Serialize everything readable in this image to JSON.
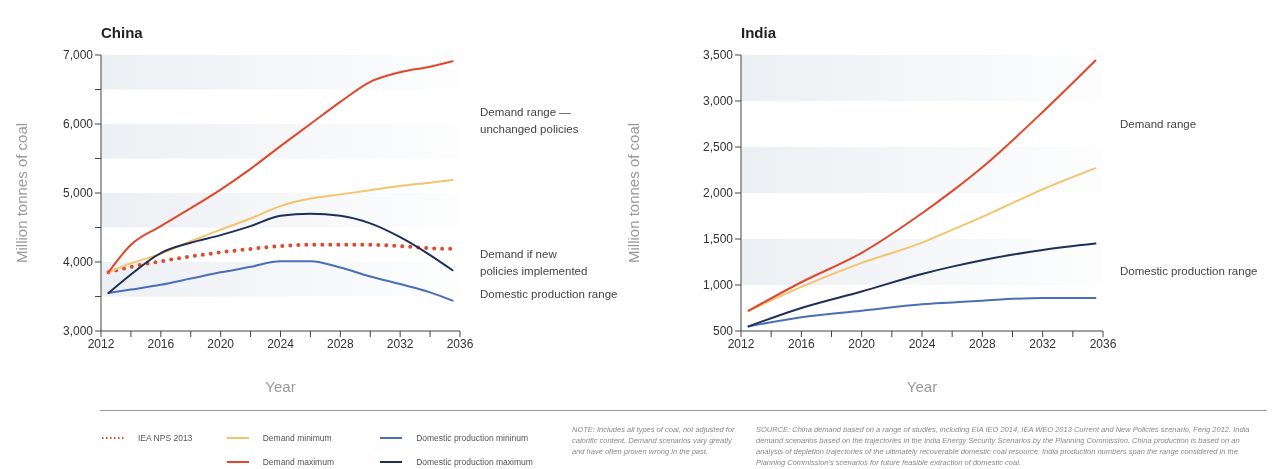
{
  "chart_data": [
    {
      "type": "line",
      "title": "China",
      "xlabel": "Year",
      "ylabel": "Million tonnes of coal",
      "x": [
        2012.5,
        2014,
        2016,
        2018,
        2020,
        2022,
        2024,
        2026,
        2028,
        2030,
        2032,
        2034,
        2035.5
      ],
      "series": [
        {
          "name": "IEA NPS 2013",
          "color": "#e0472b",
          "line_style": "dotted",
          "values": [
            3850,
            3930,
            4010,
            4080,
            4140,
            4190,
            4230,
            4250,
            4250,
            4250,
            4230,
            4200,
            4190
          ]
        },
        {
          "name": "Demand minimum",
          "color": "#f2c46d",
          "values": [
            3850,
            3980,
            4120,
            4300,
            4470,
            4630,
            4810,
            4920,
            4980,
            5040,
            5100,
            5150,
            5190
          ]
        },
        {
          "name": "Demand maximum",
          "color": "#e0472b",
          "values": [
            3850,
            4250,
            4520,
            4780,
            5050,
            5350,
            5680,
            6000,
            6320,
            6610,
            6750,
            6830,
            6910
          ]
        },
        {
          "name": "Domestic production mininum",
          "color": "#4a6fb5",
          "values": [
            3550,
            3600,
            3670,
            3760,
            3850,
            3930,
            4010,
            4010,
            3920,
            3790,
            3680,
            3560,
            3440
          ]
        },
        {
          "name": "Domestic production maximum",
          "color": "#1f2f56",
          "values": [
            3550,
            3820,
            4130,
            4280,
            4390,
            4520,
            4670,
            4700,
            4670,
            4560,
            4360,
            4100,
            3880
          ]
        }
      ],
      "xlim": [
        2012,
        2036
      ],
      "xticks": [
        2012,
        {
          "value": 2014,
          "label": null
        },
        2016,
        {
          "value": 2018,
          "label": null
        },
        2020,
        {
          "value": 2022,
          "label": null
        },
        2024,
        {
          "value": 2026,
          "label": null
        },
        2028,
        {
          "value": 2030,
          "label": null
        },
        2032,
        {
          "value": 2034,
          "label": null
        },
        2036
      ],
      "ylim": [
        3000,
        7000
      ],
      "yticks": [
        {
          "value": 3000,
          "label": "3,000"
        },
        {
          "value": 3500,
          "label": null
        },
        {
          "value": 4000,
          "label": "4,000"
        },
        {
          "value": 4500,
          "label": null
        },
        {
          "value": 5000,
          "label": "5,000"
        },
        {
          "value": 5500,
          "label": null
        },
        {
          "value": 6000,
          "label": "6,000"
        },
        {
          "value": 6500,
          "label": null
        },
        {
          "value": 7000,
          "label": "7,000"
        }
      ],
      "bands": [
        {
          "axis": "y",
          "from": 3500,
          "to": 4000,
          "color": "#eceff3"
        },
        {
          "axis": "y",
          "from": 4500,
          "to": 5000,
          "color": "#eceff3"
        },
        {
          "axis": "y",
          "from": 5500,
          "to": 6000,
          "color": "#eceff3"
        },
        {
          "axis": "y",
          "from": 6500,
          "to": 7000,
          "color": "#eceff3"
        }
      ],
      "annotations": [
        "Demand range — unchanged policies",
        "Demand if new policies implemented",
        "Domestic production range"
      ],
      "legend": "bottom"
    },
    {
      "type": "line",
      "title": "India",
      "xlabel": "Year",
      "ylabel": "Million tonnes of coal",
      "x": [
        2012.5,
        2016,
        2020,
        2024,
        2026,
        2028,
        2032,
        2035.5
      ],
      "series": [
        {
          "color": "#f2c46d",
          "values": [
            720,
            980,
            1240,
            1460,
            1600,
            1740,
            2040,
            2270
          ]
        },
        {
          "color": "#e0472b",
          "values": [
            720,
            1030,
            1350,
            1780,
            2020,
            2280,
            2880,
            3440
          ]
        },
        {
          "color": "#4a6fb5",
          "values": [
            550,
            650,
            720,
            790,
            810,
            830,
            860,
            860
          ]
        },
        {
          "color": "#1f2f56",
          "values": [
            550,
            750,
            930,
            1120,
            1200,
            1270,
            1380,
            1450
          ]
        }
      ],
      "xlim": [
        2012,
        2036
      ],
      "xticks": [
        2012,
        {
          "value": 2014,
          "label": null
        },
        2016,
        {
          "value": 2018,
          "label": null
        },
        2020,
        {
          "value": 2022,
          "label": null
        },
        2024,
        {
          "value": 2026,
          "label": null
        },
        2028,
        {
          "value": 2030,
          "label": null
        },
        2032,
        {
          "value": 2034,
          "label": null
        },
        2036
      ],
      "ylim": [
        500,
        3500
      ],
      "yticks": [
        500,
        {
          "value": 1000,
          "label": "1,000"
        },
        {
          "value": 1500,
          "label": "1,500"
        },
        {
          "value": 2000,
          "label": "2,000"
        },
        {
          "value": 2500,
          "label": "2,500"
        },
        {
          "value": 3000,
          "label": "3,000"
        },
        {
          "value": 3500,
          "label": "3,500"
        }
      ],
      "bands": [
        {
          "axis": "y",
          "from": 1000,
          "to": 1500,
          "color": "#eceff3"
        },
        {
          "axis": "y",
          "from": 2000,
          "to": 2500,
          "color": "#eceff3"
        },
        {
          "axis": "y",
          "from": 3000,
          "to": 3500,
          "color": "#eceff3"
        }
      ],
      "annotations": [
        "Demand range",
        "Domestic production range",
        "NOTE: Includes all types of coal, not adjusted for calorific content.  Demand scenarios vary greatly and have often proven wrong in the past.",
        "SOURCE: China demand based on a range of studies, including EIA IEO 2014, IEA WEO 2013 Current and New Policies scenario, Feng 2012. India demand scenarios based on the trajectories in the India Energy Security Scenarios by the Planning Commission. China production is based on an analysis of depletion trajectories of the ultimately recoverable domestic coal resource. India production numbers span the range considered in the Planning Commission's scenarios for future feasible extraction of domestic coal."
      ]
    }
  ]
}
